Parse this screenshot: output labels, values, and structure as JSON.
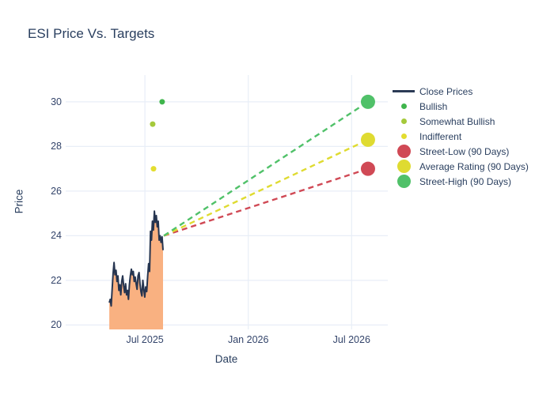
{
  "title": "ESI Price Vs. Targets",
  "colors": {
    "title_text": "#2a3f5f",
    "tick_text": "#34456b",
    "grid": "#e8eef7",
    "close_line": "#263550",
    "close_fill": "#f9b181",
    "bullish": "#3fb54c",
    "somewhat_bullish": "#a5c93b",
    "indifferent": "#e3dd2f",
    "street_low": "#d04955",
    "average_rating": "#dfdb31",
    "street_high": "#50c169"
  },
  "legend": {
    "items": [
      {
        "label": "Close Prices",
        "marker": "line",
        "color": "#2b3a55"
      },
      {
        "label": "Bullish",
        "marker": "dot",
        "color": "#3fb54c"
      },
      {
        "label": "Somewhat Bullish",
        "marker": "dot",
        "color": "#a5c93b"
      },
      {
        "label": "Indifferent",
        "marker": "dot",
        "color": "#e3dd2f"
      },
      {
        "label": "Street-Low (90 Days)",
        "marker": "big-dot",
        "color": "#d04955"
      },
      {
        "label": "Average Rating (90 Days)",
        "marker": "big-dot",
        "color": "#dfdb31"
      },
      {
        "label": "Street-High (90 Days)",
        "marker": "big-dot",
        "color": "#50c169"
      }
    ]
  },
  "chart_data": {
    "type": "line",
    "title": "ESI Price Vs. Targets",
    "xlabel": "Date",
    "ylabel": "Price",
    "grid": true,
    "legend_position": "right",
    "x_ticks": [
      {
        "label": "Jul 2025",
        "m": 6
      },
      {
        "label": "Jan 2026",
        "m": 12
      },
      {
        "label": "Jul 2026",
        "m": 18
      }
    ],
    "y_ticks": [
      20,
      22,
      24,
      26,
      28,
      30
    ],
    "x_range_months": [
      1.4,
      20.1
    ],
    "y_range": [
      19.8,
      31.2
    ],
    "close_prices": {
      "name": "Close Prices",
      "x_start_m": 3.93,
      "x_end_m": 7.05,
      "values": [
        21.0,
        21.15,
        20.85,
        21.6,
        22.3,
        22.8,
        22.25,
        22.45,
        21.95,
        22.2,
        21.55,
        21.8,
        21.35,
        21.95,
        22.2,
        21.75,
        21.45,
        21.85,
        21.35,
        21.55,
        21.15,
        21.8,
        22.2,
        22.5,
        22.25,
        22.4,
        21.95,
        22.15,
        21.85,
        21.6,
        22.2,
        22.35,
        21.85,
        21.5,
        21.3,
        22.0,
        21.6,
        21.25,
        21.7,
        21.5,
        22.2,
        22.75,
        22.4,
        24.2,
        23.8,
        24.65,
        24.25,
        25.1,
        24.6,
        24.9,
        24.4,
        24.65,
        23.8,
        24.0,
        23.7,
        23.95,
        23.35
      ]
    },
    "ratings": [
      {
        "name": "Bullish",
        "x_m": 7.0,
        "y": 30.0,
        "color": "#3fb54c"
      },
      {
        "name": "Somewhat Bullish",
        "x_m": 6.45,
        "y": 29.0,
        "color": "#a5c93b"
      },
      {
        "name": "Indifferent",
        "x_m": 6.5,
        "y": 27.0,
        "color": "#e3dd2f"
      }
    ],
    "projection_anchor": {
      "x_m": 7.1,
      "y": 24.0
    },
    "targets": [
      {
        "name": "Street-Low (90 Days)",
        "x_m": 18.95,
        "y": 27.0,
        "color": "#d04955"
      },
      {
        "name": "Average Rating (90 Days)",
        "x_m": 18.95,
        "y": 28.3,
        "color": "#dfdb31"
      },
      {
        "name": "Street-High (90 Days)",
        "x_m": 18.95,
        "y": 30.0,
        "color": "#50c169"
      }
    ]
  }
}
